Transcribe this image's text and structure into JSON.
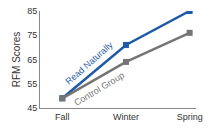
{
  "chart_data": {
    "type": "line",
    "y_label": "RFM Scores",
    "categories": [
      "Fall",
      "Winter",
      "Spring"
    ],
    "series": [
      {
        "name": "Read Naturally",
        "color": "#1f5aa8",
        "marker": "square",
        "values": [
          49,
          71,
          85
        ]
      },
      {
        "name": "Control Group",
        "color": "#757575",
        "marker": "square",
        "values": [
          49,
          64,
          76
        ]
      }
    ],
    "ylim": [
      45,
      85
    ],
    "yticks": [
      45,
      55,
      65,
      75,
      85
    ],
    "grid": false
  }
}
